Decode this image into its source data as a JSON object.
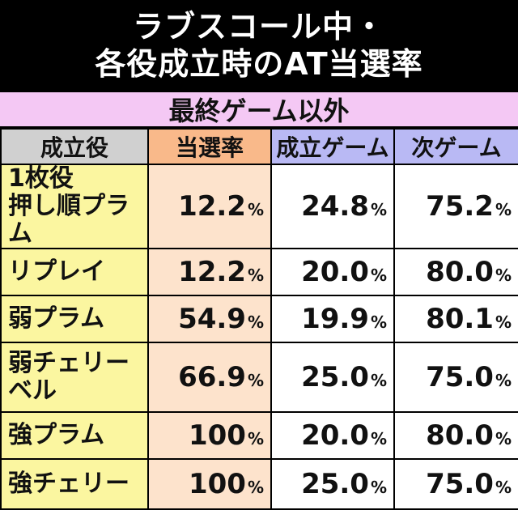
{
  "title": {
    "line1": "ラブスコール中・",
    "line2": "各役成立時のAT当選率"
  },
  "subheader": "最終ゲーム以外",
  "columns": [
    "成立役",
    "当選率",
    "成立ゲーム",
    "次ゲーム"
  ],
  "rows": [
    {
      "label1": "1枚役",
      "label2": "押し順プラム",
      "rate": "12.2",
      "seiritsu": "24.8",
      "next": "75.2"
    },
    {
      "label1": "リプレイ",
      "label2": "",
      "rate": "12.2",
      "seiritsu": "20.0",
      "next": "80.0"
    },
    {
      "label1": "弱プラム",
      "label2": "",
      "rate": "54.9",
      "seiritsu": "19.9",
      "next": "80.1"
    },
    {
      "label1": "弱チェリー",
      "label2": "ベル",
      "rate": "66.9",
      "seiritsu": "25.0",
      "next": "75.0"
    },
    {
      "label1": "強プラム",
      "label2": "",
      "rate": "100",
      "seiritsu": "20.0",
      "next": "80.0"
    },
    {
      "label1": "強チェリー",
      "label2": "",
      "rate": "100",
      "seiritsu": "25.0",
      "next": "75.0"
    }
  ],
  "unit": "%"
}
